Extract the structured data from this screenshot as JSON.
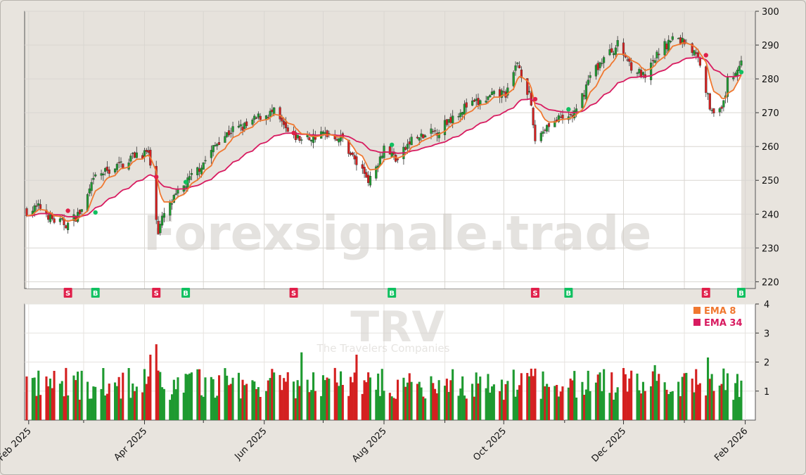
{
  "chart_data": {
    "type": "candlestick",
    "watermark": "Forexsignale.trade",
    "symbol_watermark": "TRV",
    "company_watermark": "The Travelers Companies",
    "price_axis": {
      "ylim": [
        218,
        300
      ],
      "ticks": [
        220,
        230,
        240,
        250,
        260,
        270,
        280,
        290,
        300
      ]
    },
    "volume_axis": {
      "ylim": [
        0,
        4
      ],
      "ticks": [
        1,
        2,
        3,
        4
      ]
    },
    "x_ticks": [
      "Feb 2025",
      "Apr 2025",
      "Jun 2025",
      "Aug 2025",
      "Oct 2025",
      "Dec 2025",
      "Feb 2026"
    ],
    "x_tick_dates": [
      "2025-02-01",
      "2025-04-01",
      "2025-06-01",
      "2025-08-01",
      "2025-10-01",
      "2025-12-01",
      "2026-02-01"
    ],
    "minor_x_ticks": [
      "2025-03-01",
      "2025-05-01",
      "2025-07-01",
      "2025-09-01",
      "2025-11-01",
      "2026-01-01"
    ],
    "date_range": [
      "2025-01-31",
      "2026-01-30"
    ],
    "legend": [
      {
        "name": "EMA 8",
        "color": "#f07830"
      },
      {
        "name": "EMA 34",
        "color": "#d81b60"
      }
    ],
    "colors": {
      "up": "#1e9a30",
      "down": "#d42020",
      "sell": "#e0204a",
      "buy": "#10c060",
      "price_panel_bg": "#e6e2dc"
    },
    "anchors": [
      [
        "2025-01-31",
        241
      ],
      [
        "2025-02-07",
        242
      ],
      [
        "2025-02-14",
        238
      ],
      [
        "2025-02-21",
        237
      ],
      [
        "2025-02-28",
        241
      ],
      [
        "2025-03-07",
        251
      ],
      [
        "2025-03-14",
        253
      ],
      [
        "2025-03-21",
        255
      ],
      [
        "2025-03-28",
        258
      ],
      [
        "2025-04-03",
        258
      ],
      [
        "2025-04-08",
        235
      ],
      [
        "2025-04-11",
        240
      ],
      [
        "2025-04-18",
        246
      ],
      [
        "2025-04-25",
        251
      ],
      [
        "2025-05-02",
        256
      ],
      [
        "2025-05-09",
        262
      ],
      [
        "2025-05-16",
        265
      ],
      [
        "2025-05-23",
        266
      ],
      [
        "2025-05-30",
        269
      ],
      [
        "2025-06-06",
        270
      ],
      [
        "2025-06-13",
        264
      ],
      [
        "2025-06-20",
        262
      ],
      [
        "2025-06-27",
        263
      ],
      [
        "2025-07-04",
        264
      ],
      [
        "2025-07-11",
        262
      ],
      [
        "2025-07-18",
        255
      ],
      [
        "2025-07-25",
        250
      ],
      [
        "2025-08-01",
        260
      ],
      [
        "2025-08-08",
        256
      ],
      [
        "2025-08-15",
        262
      ],
      [
        "2025-08-22",
        263
      ],
      [
        "2025-08-29",
        265
      ],
      [
        "2025-09-05",
        269
      ],
      [
        "2025-09-12",
        272
      ],
      [
        "2025-09-19",
        273
      ],
      [
        "2025-09-26",
        275
      ],
      [
        "2025-10-03",
        276
      ],
      [
        "2025-10-08",
        285
      ],
      [
        "2025-10-14",
        275
      ],
      [
        "2025-10-17",
        262
      ],
      [
        "2025-10-24",
        267
      ],
      [
        "2025-10-31",
        268
      ],
      [
        "2025-11-07",
        270
      ],
      [
        "2025-11-14",
        281
      ],
      [
        "2025-11-21",
        286
      ],
      [
        "2025-11-28",
        290
      ],
      [
        "2025-12-05",
        284
      ],
      [
        "2025-12-12",
        280
      ],
      [
        "2025-12-19",
        288
      ],
      [
        "2025-12-26",
        292
      ],
      [
        "2026-01-02",
        291
      ],
      [
        "2026-01-09",
        285
      ],
      [
        "2026-01-14",
        272
      ],
      [
        "2026-01-20",
        270
      ],
      [
        "2026-01-23",
        279
      ],
      [
        "2026-01-30",
        285
      ]
    ],
    "signals": [
      {
        "type": "S",
        "date": "2025-02-21",
        "price": 241
      },
      {
        "type": "B",
        "date": "2025-03-07",
        "price": 240.5
      },
      {
        "type": "S",
        "date": "2025-04-07",
        "price": 251
      },
      {
        "type": "B",
        "date": "2025-04-22",
        "price": 249.5
      },
      {
        "type": "S",
        "date": "2025-06-16",
        "price": 264
      },
      {
        "type": "B",
        "date": "2025-08-05",
        "price": 260.5
      },
      {
        "type": "S",
        "date": "2025-10-17",
        "price": 274
      },
      {
        "type": "B",
        "date": "2025-11-03",
        "price": 271
      },
      {
        "type": "S",
        "date": "2026-01-12",
        "price": 287
      },
      {
        "type": "B",
        "date": "2026-01-30",
        "price": 282
      }
    ]
  }
}
